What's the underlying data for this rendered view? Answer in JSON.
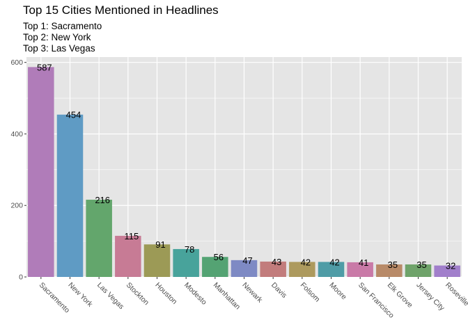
{
  "chart_data": {
    "type": "bar",
    "title": "Top 15 Cities Mentioned in Headlines",
    "subtitle": [
      "Top 1: Sacramento",
      "Top 2: New York",
      "Top 3: Las Vegas"
    ],
    "xlabel": "",
    "ylabel": "",
    "categories": [
      "Sacramento",
      "New York",
      "Las Vegas",
      "Stockton",
      "Houston",
      "Modesto",
      "Manhattan",
      "Newark",
      "Davis",
      "Folsom",
      "Moore",
      "San Francisco",
      "Elk Grove",
      "Jersey City",
      "Roseville"
    ],
    "values": [
      587,
      454,
      216,
      115,
      91,
      78,
      56,
      47,
      43,
      42,
      42,
      41,
      35,
      35,
      32
    ],
    "yticks": [
      0,
      200,
      400,
      600
    ],
    "ylim": [
      0,
      615
    ],
    "grid": true,
    "legend": "none",
    "colors": [
      "#b07cb9",
      "#5f9bc4",
      "#63a66c",
      "#c77b95",
      "#9c9a56",
      "#48a39b",
      "#54a373",
      "#7e8ac4",
      "#c27c7c",
      "#ad9a5e",
      "#4f9ca6",
      "#c97aa7",
      "#b88a68",
      "#6fa36a",
      "#a17fcb"
    ],
    "panel_bg": "#e5e5e5",
    "grid_color": "#ffffff"
  }
}
